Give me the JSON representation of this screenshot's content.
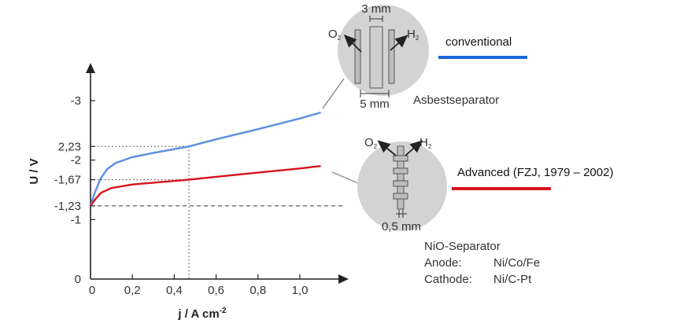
{
  "chart_data": {
    "type": "line",
    "xlabel": "j / A cm",
    "xlabel_exp": "-2",
    "ylabel": "U / V",
    "xlim": [
      0,
      1.2
    ],
    "ylim": [
      0,
      3.3
    ],
    "x_ticks": [
      "0",
      "0,2",
      "0,4",
      "0,6",
      "0,8",
      "1,0"
    ],
    "y_ticks": [
      {
        "value": 0,
        "label": "0"
      },
      {
        "value": 1,
        "label": "-1"
      },
      {
        "value": 1.23,
        "label": "-1,23"
      },
      {
        "value": 1.67,
        "label": "-1,67"
      },
      {
        "value": 2,
        "label": "-2"
      },
      {
        "value": 2.23,
        "label": "2,23"
      },
      {
        "value": 3,
        "label": "-3"
      }
    ],
    "reference_lines": [
      {
        "axis": "y",
        "value": 1.23,
        "style": "dashed"
      },
      {
        "axis": "y",
        "value": 1.67,
        "style": "dotted",
        "x_end": 0.47
      },
      {
        "axis": "y",
        "value": 2.23,
        "style": "dotted",
        "x_end": 0.47
      },
      {
        "axis": "x",
        "value": 0.47,
        "style": "dotted"
      }
    ],
    "series": [
      {
        "name": "conventional",
        "color": "#5b8fe0",
        "x": [
          0,
          0.02,
          0.05,
          0.08,
          0.12,
          0.2,
          0.3,
          0.47,
          0.6,
          0.8,
          1.0,
          1.1
        ],
        "y": [
          1.23,
          1.45,
          1.7,
          1.85,
          1.95,
          2.05,
          2.12,
          2.23,
          2.35,
          2.52,
          2.7,
          2.8
        ]
      },
      {
        "name": "Advanced (FZJ, 1979 – 2002)",
        "color": "#d8131b",
        "x": [
          0,
          0.02,
          0.05,
          0.1,
          0.2,
          0.3,
          0.47,
          0.6,
          0.8,
          1.0,
          1.1
        ],
        "y": [
          1.23,
          1.33,
          1.45,
          1.53,
          1.59,
          1.62,
          1.67,
          1.72,
          1.79,
          1.86,
          1.9
        ]
      }
    ]
  },
  "annotations": {
    "top_cell": {
      "gap_label": "3 mm",
      "width_label": "5 mm",
      "o2": "O",
      "h2": "H",
      "sub": "2",
      "caption": "Asbestseparator"
    },
    "bottom_cell": {
      "gap_label": "0,5 mm",
      "o2": "O",
      "h2": "H",
      "sub": "2",
      "caption": "NiO-Separator",
      "electrodes": [
        {
          "role": "Anode:",
          "material": "Ni/Co/Fe"
        },
        {
          "role": "Cathode:",
          "material": "Ni/C-Pt"
        }
      ]
    }
  },
  "legend": {
    "conventional": {
      "label": "conventional",
      "color": "#1a66d6"
    },
    "advanced": {
      "label": "Advanced (FZJ, 1979 – 2002)",
      "color": "#d8131b"
    }
  }
}
